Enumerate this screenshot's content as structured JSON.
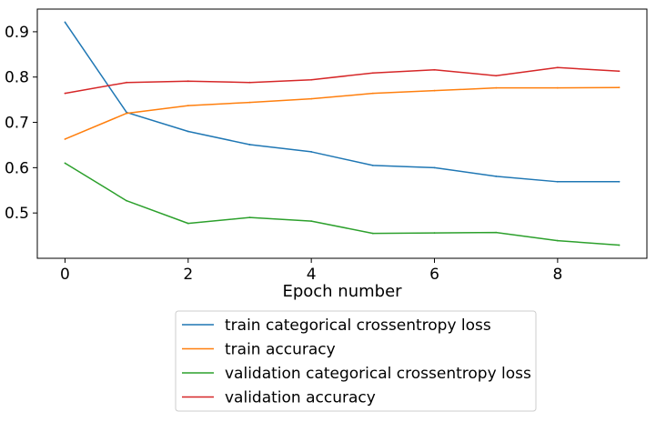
{
  "chart_data": {
    "type": "line",
    "title": "",
    "xlabel": "Epoch number",
    "ylabel": "",
    "x": [
      0,
      1,
      2,
      3,
      4,
      5,
      6,
      7,
      8,
      9
    ],
    "xlim": [
      -0.45,
      9.45
    ],
    "ylim": [
      0.4,
      0.95
    ],
    "x_ticks": [
      0,
      2,
      4,
      6,
      8
    ],
    "y_ticks": [
      0.5,
      0.6,
      0.7,
      0.8,
      0.9
    ],
    "grid": false,
    "legend_placement": "bottom-center",
    "series": [
      {
        "name": "train categorical crossentropy loss",
        "color": "#1f77b4",
        "values": [
          0.921,
          0.722,
          0.68,
          0.651,
          0.635,
          0.605,
          0.6,
          0.581,
          0.569,
          0.569
        ]
      },
      {
        "name": "train accuracy",
        "color": "#ff7f0e",
        "values": [
          0.663,
          0.72,
          0.737,
          0.744,
          0.752,
          0.764,
          0.77,
          0.776,
          0.776,
          0.777
        ]
      },
      {
        "name": "validation categorical crossentropy loss",
        "color": "#2ca02c",
        "values": [
          0.61,
          0.527,
          0.477,
          0.49,
          0.482,
          0.455,
          0.456,
          0.457,
          0.439,
          0.429
        ]
      },
      {
        "name": "validation accuracy",
        "color": "#d62728",
        "values": [
          0.764,
          0.788,
          0.791,
          0.788,
          0.794,
          0.809,
          0.816,
          0.803,
          0.821,
          0.813
        ]
      }
    ]
  }
}
